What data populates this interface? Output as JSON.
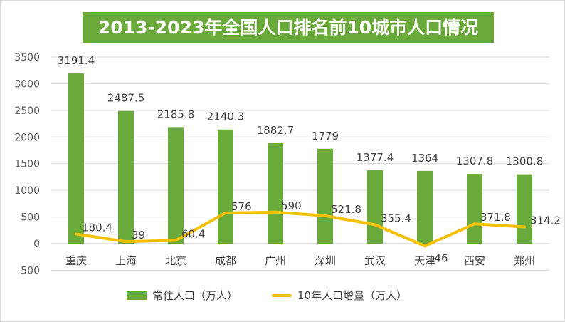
{
  "title": "2013-2023年全国人口排名前10城市人口情况",
  "chart_data": {
    "type": "bar+line",
    "title": "2013-2023年全国人口排名前10城市人口情况",
    "categories": [
      "重庆",
      "上海",
      "北京",
      "成都",
      "广州",
      "深圳",
      "武汉",
      "天津",
      "西安",
      "郑州"
    ],
    "series": [
      {
        "name": "常住人口（万人）",
        "type": "bar",
        "color": "#6aaa3a",
        "values": [
          3191.4,
          2487.5,
          2185.8,
          2140.3,
          1882.7,
          1779,
          1377.4,
          1364,
          1307.8,
          1300.8
        ],
        "labels": [
          "3191.4",
          "2487.5",
          "2185.8",
          "2140.3",
          "1882.7",
          "1779",
          "1377.4",
          "1364",
          "1307.8",
          "1300.8"
        ]
      },
      {
        "name": "10年人口增量（万人）",
        "type": "line",
        "color": "#f5c000",
        "values": [
          180.4,
          39,
          60.4,
          576,
          590,
          521.8,
          355.4,
          -46,
          371.8,
          314.2
        ],
        "labels": [
          "180.4",
          "39",
          "60.4",
          "576",
          "590",
          "521.8",
          "355.4",
          "-46",
          "371.8",
          "314.2"
        ]
      }
    ],
    "ylim": [
      -500,
      3500
    ],
    "yticks": [
      "-500",
      "0",
      "500",
      "1000",
      "1500",
      "2000",
      "2500",
      "3000",
      "3500"
    ],
    "grid": true,
    "legend_position": "bottom"
  }
}
